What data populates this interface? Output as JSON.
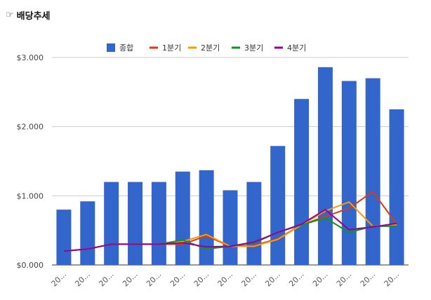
{
  "header": {
    "icon": "pointing-hand-icon",
    "title": "배당추세"
  },
  "chart_data": {
    "type": "bar",
    "categories": [
      "20...",
      "20...",
      "20...",
      "20...",
      "20...",
      "20...",
      "20...",
      "20...",
      "20...",
      "20...",
      "20...",
      "20...",
      "20...",
      "20...",
      "20..."
    ],
    "yticks": [
      "$0.000",
      "$1.000",
      "$2.000",
      "$3.000"
    ],
    "ylim": [
      0,
      3000
    ],
    "grid": true,
    "legend_position": "top",
    "series": [
      {
        "name": "종합",
        "type": "bar",
        "color": "#3366cc",
        "values": [
          800,
          920,
          1200,
          1200,
          1200,
          1350,
          1370,
          1080,
          1200,
          1720,
          2400,
          2860,
          2660,
          2700,
          2250
        ]
      },
      {
        "name": "1분기",
        "type": "line",
        "color": "#dc3912",
        "values": [
          200,
          230,
          300,
          300,
          300,
          300,
          420,
          270,
          280,
          380,
          580,
          700,
          820,
          1060,
          590
        ]
      },
      {
        "name": "2분기",
        "type": "line",
        "color": "#ff9900",
        "values": [
          200,
          230,
          300,
          300,
          300,
          340,
          440,
          270,
          270,
          370,
          580,
          780,
          910,
          560,
          580
        ]
      },
      {
        "name": "3분기",
        "type": "line",
        "color": "#109618",
        "values": [
          200,
          230,
          300,
          300,
          300,
          360,
          230,
          270,
          320,
          470,
          580,
          680,
          470,
          560,
          560
        ]
      },
      {
        "name": "4분기",
        "type": "line",
        "color": "#990099",
        "values": [
          200,
          230,
          300,
          300,
          300,
          320,
          260,
          270,
          330,
          470,
          590,
          800,
          510,
          550,
          600
        ]
      }
    ]
  }
}
